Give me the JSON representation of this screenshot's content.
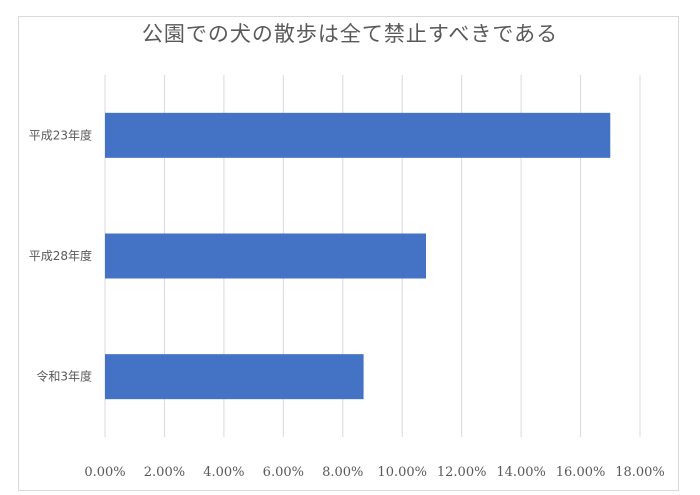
{
  "chart_data": {
    "type": "bar",
    "orientation": "horizontal",
    "title": "公園での犬の散歩は全て禁止すべきである",
    "categories": [
      "平成23年度",
      "平成28年度",
      "令和3年度"
    ],
    "values": [
      0.17,
      0.108,
      0.087
    ],
    "xlim": [
      0,
      0.18
    ],
    "xticks": [
      0,
      0.02,
      0.04,
      0.06,
      0.08,
      0.1,
      0.12,
      0.14,
      0.16,
      0.18
    ],
    "xtick_labels": [
      "0.00%",
      "2.00%",
      "4.00%",
      "6.00%",
      "8.00%",
      "10.00%",
      "12.00%",
      "14.00%",
      "16.00%",
      "18.00%"
    ],
    "xlabel": "",
    "ylabel": "",
    "grid": "vertical",
    "legend": "none",
    "bar_color": "#4472c4",
    "grid_color": "#d9d9d9"
  }
}
